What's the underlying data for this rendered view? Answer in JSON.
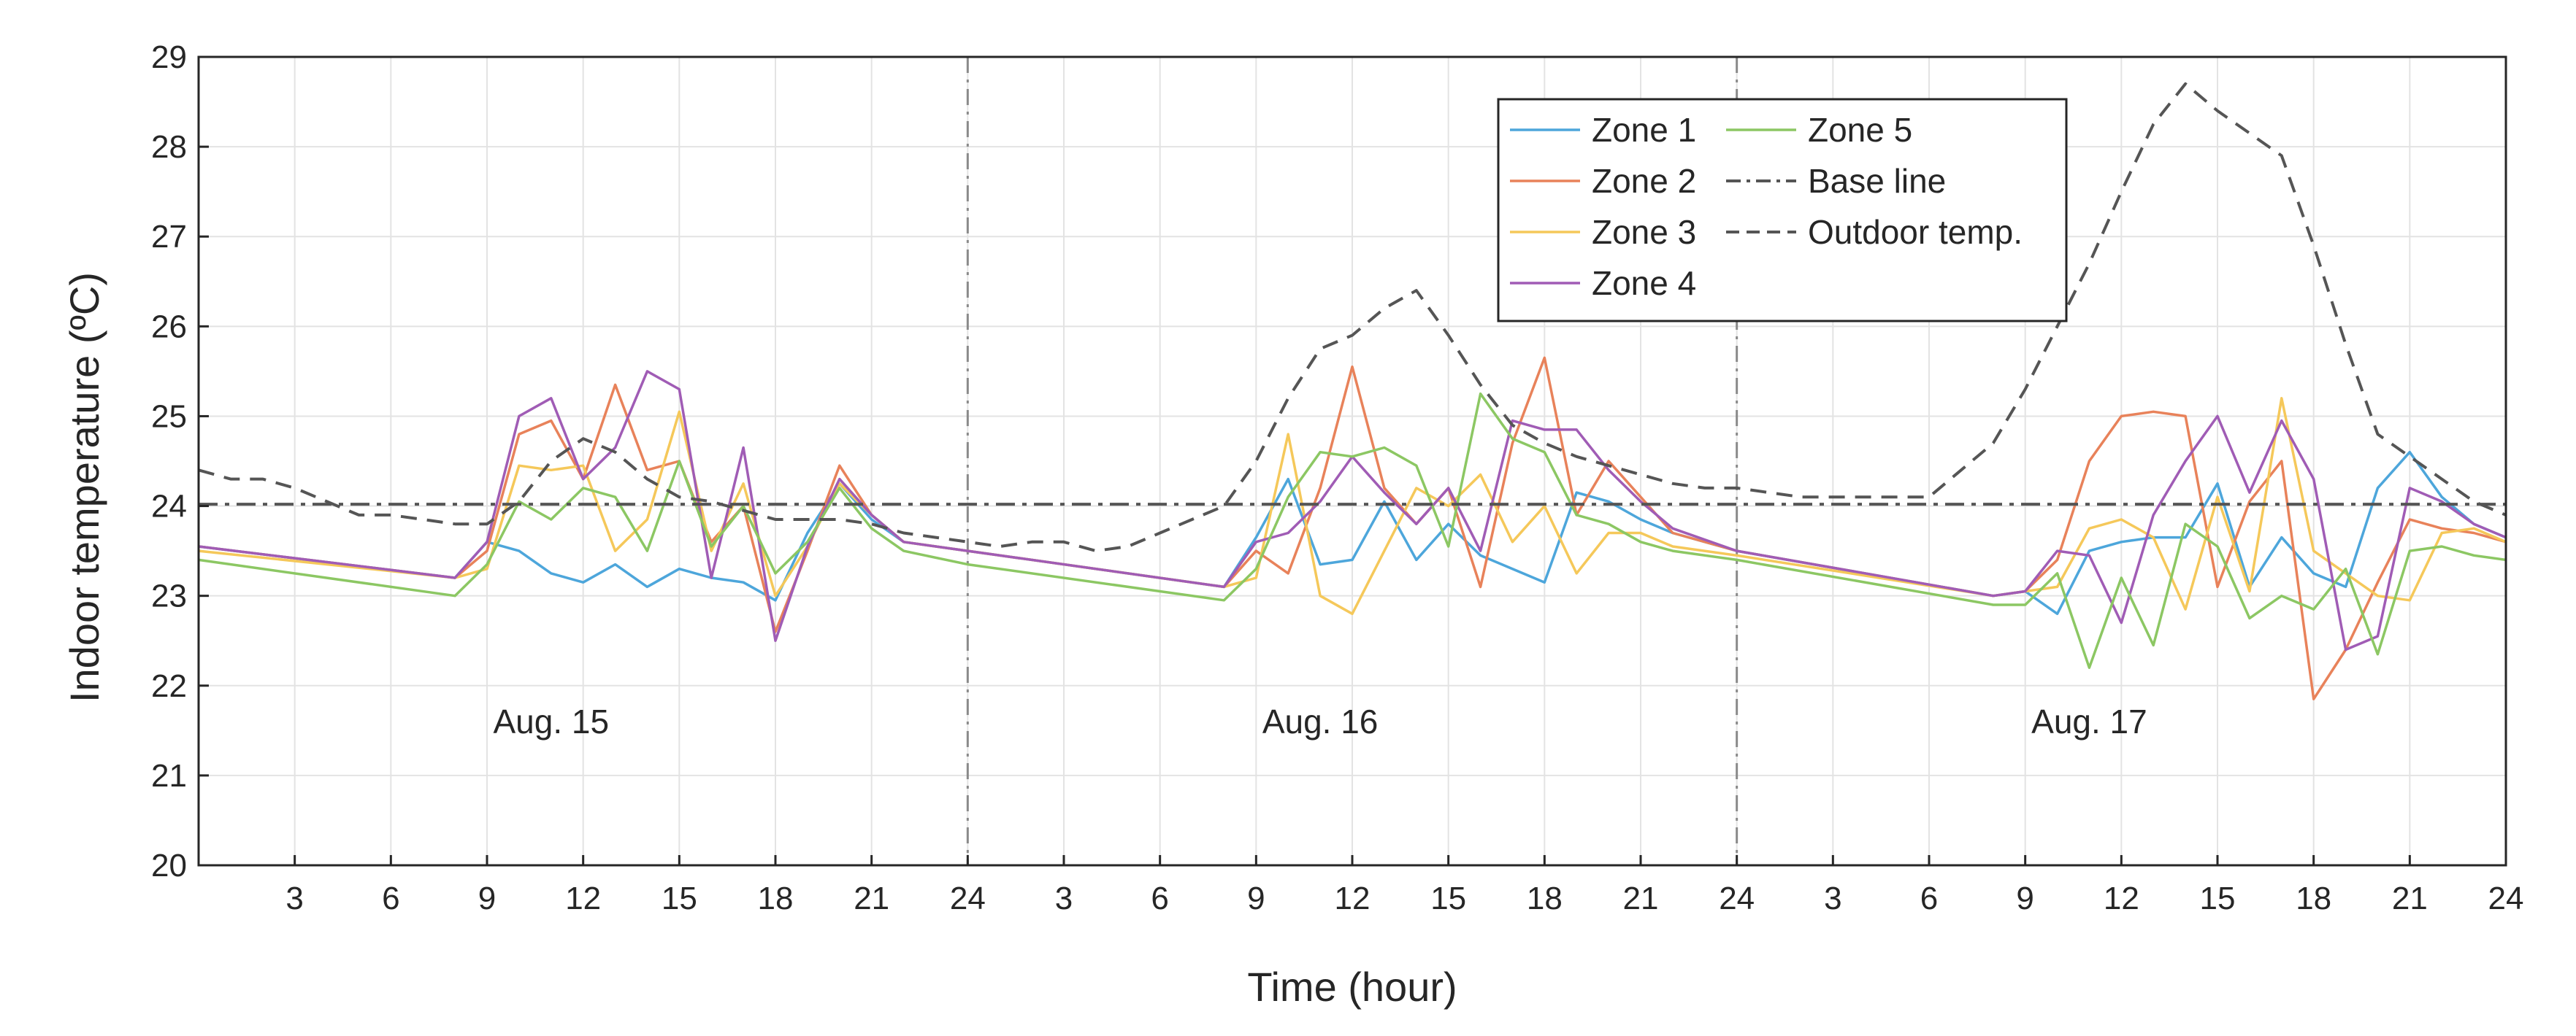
{
  "chart_data": {
    "type": "line",
    "title": "",
    "xlabel": "Time (hour)",
    "ylabel": "Indoor temperature (ºC)",
    "ylim": [
      20,
      29
    ],
    "yticks": [
      20,
      21,
      22,
      23,
      24,
      25,
      26,
      27,
      28,
      29
    ],
    "xlim": [
      0,
      72
    ],
    "xtick_positions": [
      3,
      6,
      9,
      12,
      15,
      18,
      21,
      24,
      27,
      30,
      33,
      36,
      39,
      42,
      45,
      48,
      51,
      54,
      57,
      60,
      63,
      66,
      69,
      72
    ],
    "xtick_labels": [
      "3",
      "6",
      "9",
      "12",
      "15",
      "18",
      "21",
      "24",
      "3",
      "6",
      "9",
      "12",
      "15",
      "18",
      "21",
      "24",
      "3",
      "6",
      "9",
      "12",
      "15",
      "18",
      "21",
      "24"
    ],
    "grid": true,
    "day_dividers": [
      24,
      48
    ],
    "day_labels": [
      {
        "text": "Aug. 15",
        "x": 11,
        "y": 21.6
      },
      {
        "text": "Aug. 16",
        "x": 35,
        "y": 21.6
      },
      {
        "text": "Aug. 17",
        "x": 59,
        "y": 21.6
      }
    ],
    "legend_position": "top-right",
    "series": [
      {
        "name": "Zone 1",
        "color": "#4DA6DB",
        "style": "solid",
        "x": [
          0,
          8,
          9,
          10,
          11,
          12,
          13,
          14,
          15,
          16,
          17,
          18,
          19,
          20,
          21,
          22,
          24,
          32,
          33,
          34,
          35,
          36,
          37,
          38,
          39,
          40,
          41,
          42,
          43,
          44,
          45,
          46,
          48,
          56,
          57,
          58,
          59,
          60,
          61,
          62,
          63,
          64,
          65,
          66,
          67,
          68,
          69,
          70,
          71,
          72
        ],
        "y": [
          23.55,
          23.2,
          23.6,
          23.5,
          23.25,
          23.15,
          23.35,
          23.1,
          23.3,
          23.2,
          23.15,
          22.95,
          23.7,
          24.25,
          23.85,
          23.6,
          23.5,
          23.1,
          23.65,
          24.3,
          23.35,
          23.4,
          24.05,
          23.4,
          23.8,
          23.45,
          23.3,
          23.15,
          24.15,
          24.05,
          23.85,
          23.7,
          23.5,
          23.0,
          23.05,
          22.8,
          23.5,
          23.6,
          23.65,
          23.65,
          24.25,
          23.1,
          23.65,
          23.25,
          23.1,
          24.2,
          24.6,
          24.1,
          23.8,
          23.65
        ]
      },
      {
        "name": "Zone 2",
        "color": "#E8825A",
        "style": "solid",
        "x": [
          0,
          8,
          9,
          10,
          11,
          12,
          13,
          14,
          15,
          16,
          17,
          18,
          19,
          20,
          21,
          22,
          24,
          32,
          33,
          34,
          35,
          36,
          37,
          38,
          39,
          40,
          41,
          42,
          43,
          44,
          45,
          46,
          48,
          56,
          57,
          58,
          59,
          60,
          61,
          62,
          63,
          64,
          65,
          66,
          67,
          68,
          69,
          70,
          71,
          72
        ],
        "y": [
          23.55,
          23.2,
          23.5,
          24.8,
          24.95,
          24.3,
          25.35,
          24.4,
          24.5,
          23.6,
          24.0,
          22.6,
          23.5,
          24.45,
          23.9,
          23.6,
          23.5,
          23.1,
          23.5,
          23.25,
          24.2,
          25.55,
          24.2,
          23.8,
          24.2,
          23.1,
          24.7,
          25.65,
          23.9,
          24.5,
          24.1,
          23.7,
          23.5,
          23.0,
          23.05,
          23.4,
          24.5,
          25.0,
          25.05,
          25.0,
          23.1,
          24.05,
          24.5,
          21.85,
          22.4,
          23.15,
          23.85,
          23.75,
          23.7,
          23.6
        ]
      },
      {
        "name": "Zone 3",
        "color": "#F5C85A",
        "style": "solid",
        "x": [
          0,
          8,
          9,
          10,
          11,
          12,
          13,
          14,
          15,
          16,
          17,
          18,
          19,
          20,
          21,
          22,
          24,
          32,
          33,
          34,
          35,
          36,
          37,
          38,
          39,
          40,
          41,
          42,
          43,
          44,
          45,
          46,
          48,
          56,
          57,
          58,
          59,
          60,
          61,
          62,
          63,
          64,
          65,
          66,
          67,
          68,
          69,
          70,
          71,
          72
        ],
        "y": [
          23.5,
          23.2,
          23.3,
          24.45,
          24.4,
          24.45,
          23.5,
          23.85,
          25.05,
          23.5,
          24.25,
          23.0,
          23.55,
          24.25,
          23.9,
          23.6,
          23.5,
          23.1,
          23.2,
          24.8,
          23.0,
          22.8,
          23.5,
          24.2,
          24.0,
          24.35,
          23.6,
          24.0,
          23.25,
          23.7,
          23.7,
          23.55,
          23.45,
          23.0,
          23.05,
          23.1,
          23.75,
          23.85,
          23.65,
          22.85,
          24.1,
          23.05,
          25.2,
          23.5,
          23.25,
          23.0,
          22.95,
          23.7,
          23.75,
          23.6
        ]
      },
      {
        "name": "Zone 4",
        "color": "#A05CB5",
        "style": "solid",
        "x": [
          0,
          8,
          9,
          10,
          11,
          12,
          13,
          14,
          15,
          16,
          17,
          18,
          19,
          20,
          21,
          22,
          24,
          32,
          33,
          34,
          35,
          36,
          37,
          38,
          39,
          40,
          41,
          42,
          43,
          44,
          45,
          46,
          48,
          56,
          57,
          58,
          59,
          60,
          61,
          62,
          63,
          64,
          65,
          66,
          67,
          68,
          69,
          70,
          71,
          72
        ],
        "y": [
          23.55,
          23.2,
          23.6,
          25.0,
          25.2,
          24.3,
          24.65,
          25.5,
          25.3,
          23.2,
          24.65,
          22.5,
          23.55,
          24.3,
          23.9,
          23.6,
          23.5,
          23.1,
          23.6,
          23.7,
          24.05,
          24.55,
          24.15,
          23.8,
          24.2,
          23.5,
          24.95,
          24.85,
          24.85,
          24.4,
          24.05,
          23.75,
          23.5,
          23.0,
          23.05,
          23.5,
          23.45,
          22.7,
          23.9,
          24.5,
          25.0,
          24.15,
          24.95,
          24.3,
          22.4,
          22.55,
          24.2,
          24.05,
          23.8,
          23.65
        ]
      },
      {
        "name": "Zone 5",
        "color": "#8CC763",
        "style": "solid",
        "x": [
          0,
          8,
          9,
          10,
          11,
          12,
          13,
          14,
          15,
          16,
          17,
          18,
          19,
          20,
          21,
          22,
          24,
          32,
          33,
          34,
          35,
          36,
          37,
          38,
          39,
          40,
          41,
          42,
          43,
          44,
          45,
          46,
          48,
          56,
          57,
          58,
          59,
          60,
          61,
          62,
          63,
          64,
          65,
          66,
          67,
          68,
          69,
          70,
          71,
          72
        ],
        "y": [
          23.4,
          23.0,
          23.35,
          24.05,
          23.85,
          24.2,
          24.1,
          23.5,
          24.5,
          23.55,
          24.0,
          23.25,
          23.6,
          24.2,
          23.75,
          23.5,
          23.35,
          22.95,
          23.3,
          24.1,
          24.6,
          24.55,
          24.65,
          24.45,
          23.55,
          25.25,
          24.75,
          24.6,
          23.9,
          23.8,
          23.6,
          23.5,
          23.4,
          22.9,
          22.9,
          23.25,
          22.2,
          23.2,
          22.45,
          23.8,
          23.55,
          22.75,
          23.0,
          22.85,
          23.3,
          22.35,
          23.5,
          23.55,
          23.45,
          23.4
        ]
      },
      {
        "name": "Base line",
        "color": "#555555",
        "style": "dashdot",
        "x": [
          0,
          72
        ],
        "y": [
          24.02,
          24.02
        ]
      },
      {
        "name": "Outdoor temp.",
        "color": "#555555",
        "style": "dashed",
        "x": [
          0,
          1,
          2,
          3,
          4,
          5,
          6,
          7,
          8,
          9,
          10,
          11,
          12,
          13,
          14,
          15,
          16,
          17,
          18,
          19,
          20,
          21,
          22,
          23,
          24,
          25,
          26,
          27,
          28,
          29,
          30,
          31,
          32,
          33,
          34,
          35,
          36,
          37,
          38,
          39,
          40,
          41,
          42,
          43,
          44,
          45,
          46,
          47,
          48,
          49,
          50,
          51,
          52,
          53,
          54,
          55,
          56,
          57,
          58,
          59,
          60,
          61,
          62,
          63,
          64,
          65,
          66,
          67,
          68,
          69,
          70,
          71,
          72
        ],
        "y": [
          24.4,
          24.3,
          24.3,
          24.2,
          24.05,
          23.9,
          23.9,
          23.85,
          23.8,
          23.8,
          24.05,
          24.5,
          24.75,
          24.6,
          24.3,
          24.1,
          24.05,
          23.95,
          23.85,
          23.85,
          23.85,
          23.8,
          23.7,
          23.65,
          23.6,
          23.55,
          23.6,
          23.6,
          23.5,
          23.55,
          23.7,
          23.85,
          24.0,
          24.5,
          25.2,
          25.75,
          25.9,
          26.2,
          26.4,
          25.9,
          25.35,
          24.9,
          24.7,
          24.55,
          24.45,
          24.35,
          24.25,
          24.2,
          24.2,
          24.15,
          24.1,
          24.1,
          24.1,
          24.1,
          24.1,
          24.4,
          24.7,
          25.3,
          26.0,
          26.7,
          27.5,
          28.25,
          28.7,
          28.4,
          28.15,
          27.9,
          26.9,
          25.8,
          24.8,
          24.55,
          24.3,
          24.05,
          23.9
        ]
      }
    ]
  }
}
